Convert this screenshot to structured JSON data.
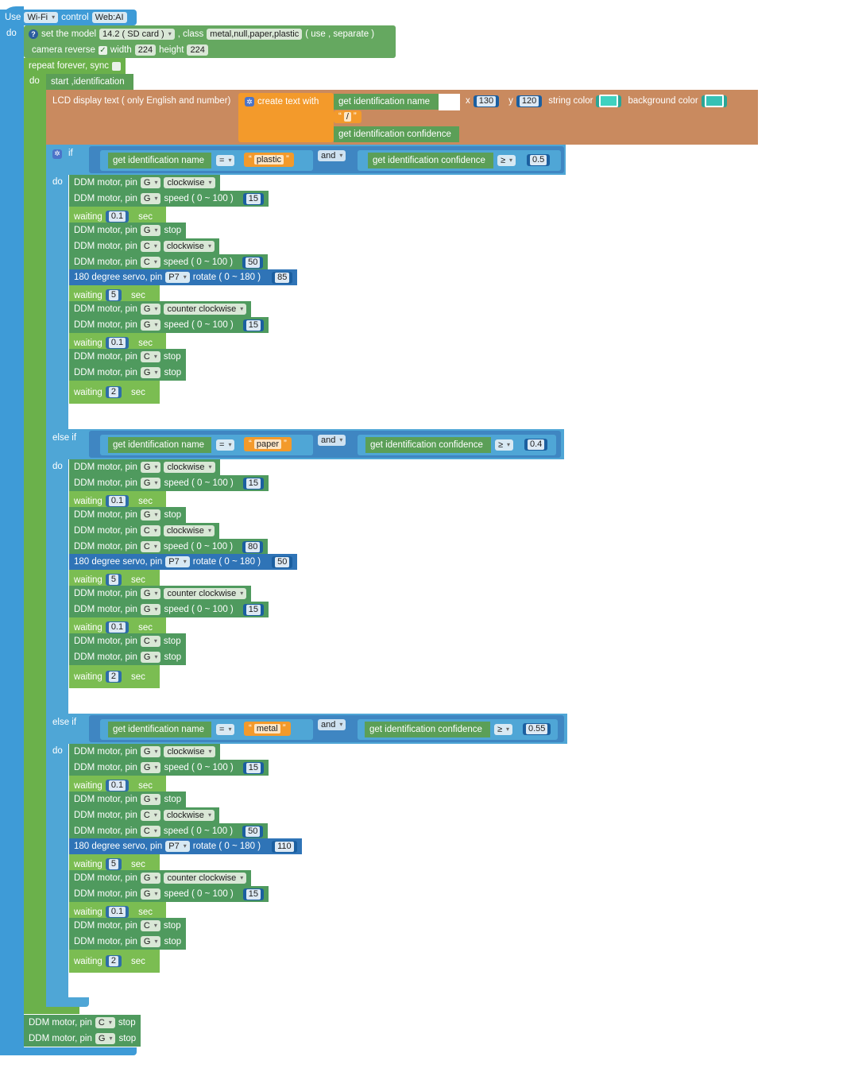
{
  "wifi": {
    "use_label": "Use",
    "mode": "Wi-Fi",
    "control_label": "control",
    "control_value": "Web:AI",
    "do_label": "do"
  },
  "model": {
    "set_label": "set the model",
    "model_value": "14.2 ( SD card )",
    "class_label": ", class",
    "class_value": "metal,null,paper,plastic",
    "use_sep": "( use , separate )",
    "camera_label": "camera reverse",
    "camera_checked": "✓",
    "width_label": "width",
    "width_value": "224",
    "height_label": "height",
    "height_value": "224"
  },
  "loop": {
    "label": "repeat forever, sync",
    "do_label": "do"
  },
  "start": {
    "label": "start ,identification"
  },
  "lcd": {
    "label": "LCD display text ( only English and number)",
    "create_label": "create text with",
    "get_name": "get identification name",
    "sep": "/",
    "get_conf": "get identification confidence",
    "x_label": "x",
    "x_value": "130",
    "y_label": "y",
    "y_value": "120",
    "string_color_label": "string color",
    "bg_color_label": "background color",
    "string_color": "#3fd2c0",
    "bg_color": "#36c1b5"
  },
  "labels": {
    "if": "if",
    "else_if": "else if",
    "do": "do",
    "and": "and",
    "eq": "=",
    "ge": "≥",
    "get_name": "get identification name",
    "get_conf": "get identification confidence",
    "motor": "DDM motor, pin",
    "speed": "speed ( 0 ~ 100 )",
    "stop": "stop",
    "servo": "180 degree servo, pin",
    "rotate": "rotate ( 0 ~ 180 )",
    "waiting": "waiting",
    "sec": "sec",
    "q_open": "“",
    "q_close": "”"
  },
  "branches": [
    {
      "cls": "plastic",
      "conf": "0.5",
      "steps": [
        {
          "t": "dir",
          "pin": "G",
          "v": "clockwise"
        },
        {
          "t": "spd",
          "pin": "G",
          "v": "15"
        },
        {
          "t": "wait",
          "v": "0.1"
        },
        {
          "t": "stop",
          "pin": "G"
        },
        {
          "t": "dir",
          "pin": "C",
          "v": "clockwise"
        },
        {
          "t": "spd",
          "pin": "C",
          "v": "50"
        },
        {
          "t": "servo",
          "pin": "P7",
          "v": "85"
        },
        {
          "t": "wait",
          "v": "5"
        },
        {
          "t": "dir",
          "pin": "G",
          "v": "counter clockwise"
        },
        {
          "t": "spd",
          "pin": "G",
          "v": "15"
        },
        {
          "t": "wait",
          "v": "0.1"
        },
        {
          "t": "stop",
          "pin": "C"
        },
        {
          "t": "stop",
          "pin": "G"
        },
        {
          "t": "wait",
          "v": "2"
        }
      ]
    },
    {
      "cls": "paper",
      "conf": "0.4",
      "steps": [
        {
          "t": "dir",
          "pin": "G",
          "v": "clockwise"
        },
        {
          "t": "spd",
          "pin": "G",
          "v": "15"
        },
        {
          "t": "wait",
          "v": "0.1"
        },
        {
          "t": "stop",
          "pin": "G"
        },
        {
          "t": "dir",
          "pin": "C",
          "v": "clockwise"
        },
        {
          "t": "spd",
          "pin": "C",
          "v": "80"
        },
        {
          "t": "servo",
          "pin": "P7",
          "v": "50"
        },
        {
          "t": "wait",
          "v": "5"
        },
        {
          "t": "dir",
          "pin": "G",
          "v": "counter clockwise"
        },
        {
          "t": "spd",
          "pin": "G",
          "v": "15"
        },
        {
          "t": "wait",
          "v": "0.1"
        },
        {
          "t": "stop",
          "pin": "C"
        },
        {
          "t": "stop",
          "pin": "G"
        },
        {
          "t": "wait",
          "v": "2"
        }
      ]
    },
    {
      "cls": "metal",
      "conf": "0.55",
      "steps": [
        {
          "t": "dir",
          "pin": "G",
          "v": "clockwise"
        },
        {
          "t": "spd",
          "pin": "G",
          "v": "15"
        },
        {
          "t": "wait",
          "v": "0.1"
        },
        {
          "t": "stop",
          "pin": "G"
        },
        {
          "t": "dir",
          "pin": "C",
          "v": "clockwise"
        },
        {
          "t": "spd",
          "pin": "C",
          "v": "50"
        },
        {
          "t": "servo",
          "pin": "P7",
          "v": "110"
        },
        {
          "t": "wait",
          "v": "5"
        },
        {
          "t": "dir",
          "pin": "G",
          "v": "counter clockwise"
        },
        {
          "t": "spd",
          "pin": "G",
          "v": "15"
        },
        {
          "t": "wait",
          "v": "0.1"
        },
        {
          "t": "stop",
          "pin": "C"
        },
        {
          "t": "stop",
          "pin": "G"
        },
        {
          "t": "wait",
          "v": "2"
        }
      ]
    }
  ],
  "tail": [
    {
      "pin": "C"
    },
    {
      "pin": "G"
    }
  ]
}
